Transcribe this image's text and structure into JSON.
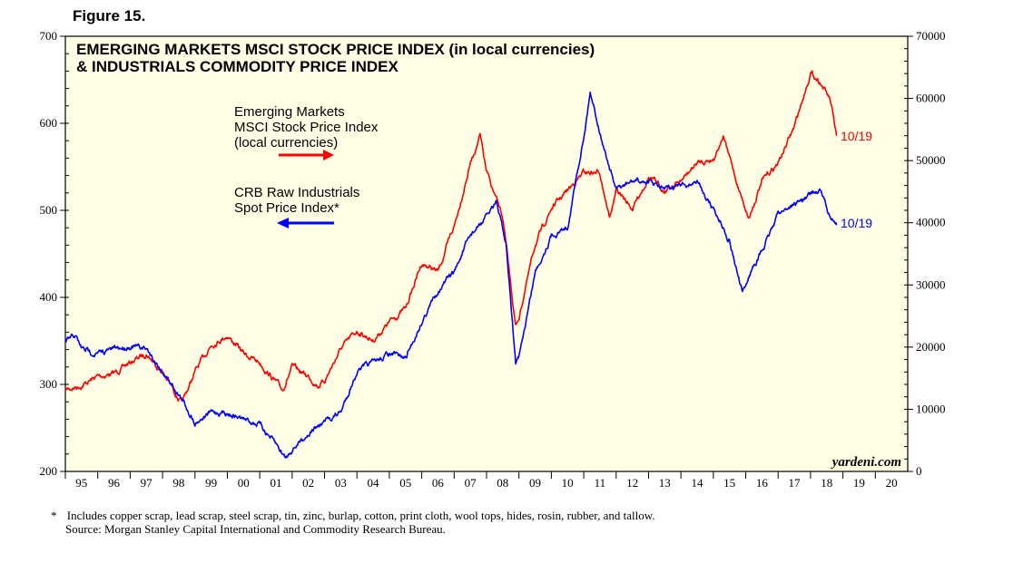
{
  "figure_label": "Figure 15.",
  "chart_data": {
    "type": "line",
    "title_lines": [
      "EMERGING MARKETS MSCI STOCK PRICE INDEX (in local currencies)",
      "& INDUSTRIALS COMMODITY PRICE INDEX"
    ],
    "x_tick_labels": [
      "95",
      "96",
      "97",
      "98",
      "99",
      "00",
      "01",
      "02",
      "03",
      "04",
      "05",
      "06",
      "07",
      "08",
      "09",
      "10",
      "11",
      "12",
      "13",
      "14",
      "15",
      "16",
      "17",
      "18",
      "19",
      "20"
    ],
    "xlim": [
      1995,
      2021
    ],
    "left_axis": {
      "ylim": [
        200,
        700
      ],
      "ticks": [
        200,
        300,
        400,
        500,
        600,
        700
      ]
    },
    "right_axis": {
      "ylim": [
        0,
        70000
      ],
      "ticks": [
        0,
        10000,
        20000,
        30000,
        40000,
        50000,
        60000,
        70000
      ]
    },
    "grid": false,
    "series": [
      {
        "name": "Emerging Markets MSCI Stock Price Index (local currencies)",
        "legend_lines": [
          "Emerging Markets",
          "MSCI Stock Price Index",
          "(local currencies)"
        ],
        "axis": "right",
        "color": "#ff0000",
        "end_label": "10/19",
        "x": [
          1995.0,
          1995.5,
          1996.0,
          1996.5,
          1997.0,
          1997.5,
          1998.0,
          1998.6,
          1999.0,
          1999.5,
          2000.0,
          2000.5,
          2001.0,
          2001.7,
          2002.0,
          2002.5,
          2002.8,
          2003.0,
          2003.5,
          2004.0,
          2004.5,
          2005.0,
          2005.5,
          2006.0,
          2006.5,
          2007.0,
          2007.5,
          2007.8,
          2008.0,
          2008.5,
          2008.9,
          2009.0,
          2009.5,
          2010.0,
          2010.5,
          2011.0,
          2011.5,
          2011.8,
          2012.0,
          2012.5,
          2013.0,
          2013.5,
          2014.0,
          2014.5,
          2015.0,
          2015.3,
          2015.8,
          2016.1,
          2016.5,
          2017.0,
          2017.5,
          2018.0,
          2018.3,
          2018.6,
          2018.8
        ],
        "y": [
          13100,
          13850,
          15300,
          15750,
          17500,
          19000,
          16000,
          10900,
          16000,
          20400,
          21900,
          19000,
          17500,
          13100,
          16800,
          15300,
          13850,
          14600,
          19700,
          22600,
          21100,
          24000,
          26200,
          33500,
          32100,
          39400,
          49600,
          54000,
          48100,
          40800,
          23300,
          24800,
          36500,
          42300,
          45200,
          48100,
          48100,
          40800,
          45200,
          42300,
          47400,
          45200,
          46700,
          49600,
          50300,
          54000,
          45200,
          40800,
          46700,
          49600,
          55400,
          64200,
          62700,
          59800,
          54000
        ]
      },
      {
        "name": "CRB Raw Industrials Spot Price Index*",
        "legend_lines": [
          "CRB Raw Industrials",
          "Spot Price Index*"
        ],
        "axis": "left",
        "color": "#0000ff",
        "end_label": "10/19",
        "x": [
          1995.0,
          1995.3,
          1995.5,
          1996.0,
          1996.5,
          1997.0,
          1997.5,
          1998.0,
          1998.5,
          1999.0,
          1999.5,
          2000.0,
          2000.5,
          2001.0,
          2001.5,
          2001.8,
          2002.0,
          2002.5,
          2003.0,
          2003.5,
          2004.0,
          2004.5,
          2005.0,
          2005.5,
          2006.0,
          2006.5,
          2007.0,
          2007.5,
          2008.0,
          2008.3,
          2008.6,
          2008.9,
          2009.0,
          2009.5,
          2010.0,
          2010.5,
          2011.0,
          2011.2,
          2011.6,
          2012.0,
          2012.5,
          2013.0,
          2013.5,
          2014.0,
          2014.5,
          2015.0,
          2015.5,
          2015.9,
          2016.2,
          2016.6,
          2017.0,
          2017.5,
          2018.0,
          2018.3,
          2018.6,
          2018.8
        ],
        "y": [
          348,
          356,
          341,
          335,
          341,
          344,
          341,
          315,
          289,
          257,
          268,
          268,
          260,
          254,
          231,
          216,
          226,
          244,
          257,
          268,
          315,
          325,
          335,
          330,
          372,
          408,
          429,
          471,
          492,
          512,
          460,
          325,
          330,
          429,
          471,
          481,
          585,
          637,
          575,
          523,
          533,
          533,
          523,
          528,
          533,
          502,
          466,
          403,
          434,
          460,
          497,
          507,
          518,
          523,
          492,
          483
        ]
      }
    ],
    "watermark": "yardeni.com"
  },
  "footnotes": {
    "asterisk": "*",
    "note": "Includes copper scrap, lead scrap, steel scrap, tin, zinc, burlap, cotton, print cloth, wool tops, hides, rosin, rubber, and tallow.",
    "source": "Source: Morgan Stanley Capital International and Commodity Research Bureau."
  }
}
